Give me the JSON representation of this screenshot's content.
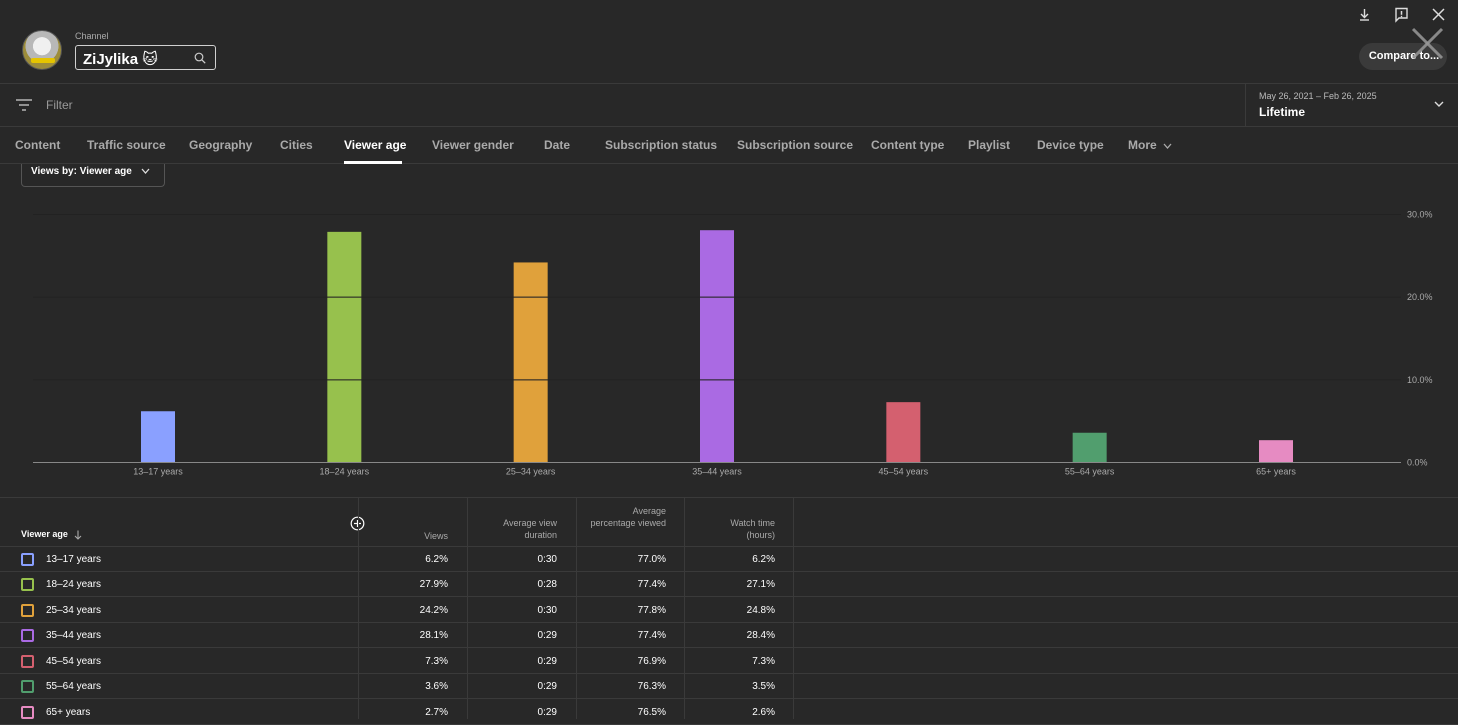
{
  "header": {
    "channel_label": "Channel",
    "channel_name": "ZiJylika 🐱",
    "compare_label": "Compare to..."
  },
  "filter": {
    "placeholder": "Filter"
  },
  "date": {
    "range": "May 26, 2021 – Feb 26, 2025",
    "label": "Lifetime"
  },
  "tabs": [
    "Content",
    "Traffic source",
    "Geography",
    "Cities",
    "Viewer age",
    "Viewer gender",
    "Date",
    "Subscription status",
    "Subscription source",
    "Content type",
    "Playlist",
    "Device type",
    "More"
  ],
  "active_tab": "Viewer age",
  "views_dropdown": {
    "label": "Views by: Viewer age"
  },
  "chart_data": {
    "type": "bar",
    "categories": [
      "13–17 years",
      "18–24 years",
      "25–34 years",
      "35–44 years",
      "45–54 years",
      "55–64 years",
      "65+ years"
    ],
    "values": [
      6.2,
      27.9,
      24.2,
      28.1,
      7.3,
      3.6,
      2.7
    ],
    "colors": [
      "#8aa0ff",
      "#97c14d",
      "#e0a13b",
      "#aa6ae3",
      "#d4606f",
      "#519e6e",
      "#e68bc2"
    ],
    "ytick_labels": [
      "0.0%",
      "10.0%",
      "20.0%",
      "30.0%"
    ],
    "ylim": [
      0,
      30
    ],
    "yaxis_position": "right",
    "grid": true
  },
  "table": {
    "headers": {
      "age": "Viewer age",
      "views": "Views",
      "avg_view_duration": "Average view duration",
      "avg_pct_viewed": "Average percentage viewed",
      "watch_time": "Watch time (hours)"
    },
    "rows": [
      {
        "age": "13–17 years",
        "views": "6.2%",
        "duration": "0:30",
        "pct": "77.0%",
        "watch": "6.2%"
      },
      {
        "age": "18–24 years",
        "views": "27.9%",
        "duration": "0:28",
        "pct": "77.4%",
        "watch": "27.1%"
      },
      {
        "age": "25–34 years",
        "views": "24.2%",
        "duration": "0:30",
        "pct": "77.8%",
        "watch": "24.8%"
      },
      {
        "age": "35–44 years",
        "views": "28.1%",
        "duration": "0:29",
        "pct": "77.4%",
        "watch": "28.4%"
      },
      {
        "age": "45–54 years",
        "views": "7.3%",
        "duration": "0:29",
        "pct": "76.9%",
        "watch": "7.3%"
      },
      {
        "age": "55–64 years",
        "views": "3.6%",
        "duration": "0:29",
        "pct": "76.3%",
        "watch": "3.5%"
      },
      {
        "age": "65+ years",
        "views": "2.7%",
        "duration": "0:29",
        "pct": "76.5%",
        "watch": "2.6%"
      }
    ]
  }
}
